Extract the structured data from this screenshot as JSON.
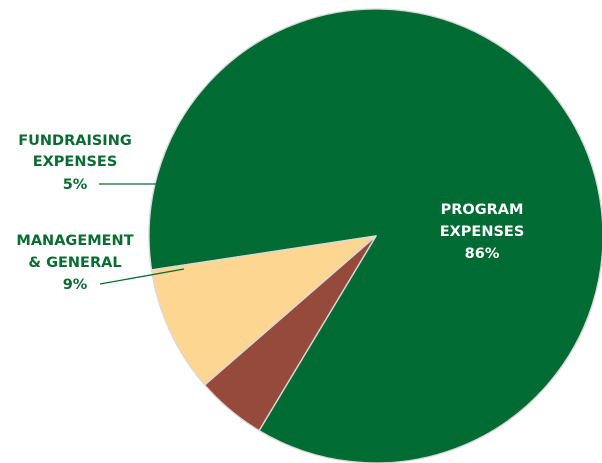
{
  "chart_data": {
    "type": "pie",
    "slices": [
      {
        "label_lines": [
          "PROGRAM",
          "EXPENSES"
        ],
        "percent_label": "86%",
        "value": 86,
        "color": "#006b33"
      },
      {
        "label_lines": [
          "FUNDRAISING",
          "EXPENSES"
        ],
        "percent_label": "5%",
        "value": 5,
        "color": "#954a3b"
      },
      {
        "label_lines": [
          "MANAGEMENT",
          "& GENERAL"
        ],
        "percent_label": "9%",
        "value": 9,
        "color": "#fdd692"
      }
    ],
    "label_color": "#0a6b33",
    "inside_label_color": "#ffffff",
    "slice_border_color": "#d9d9d9"
  }
}
